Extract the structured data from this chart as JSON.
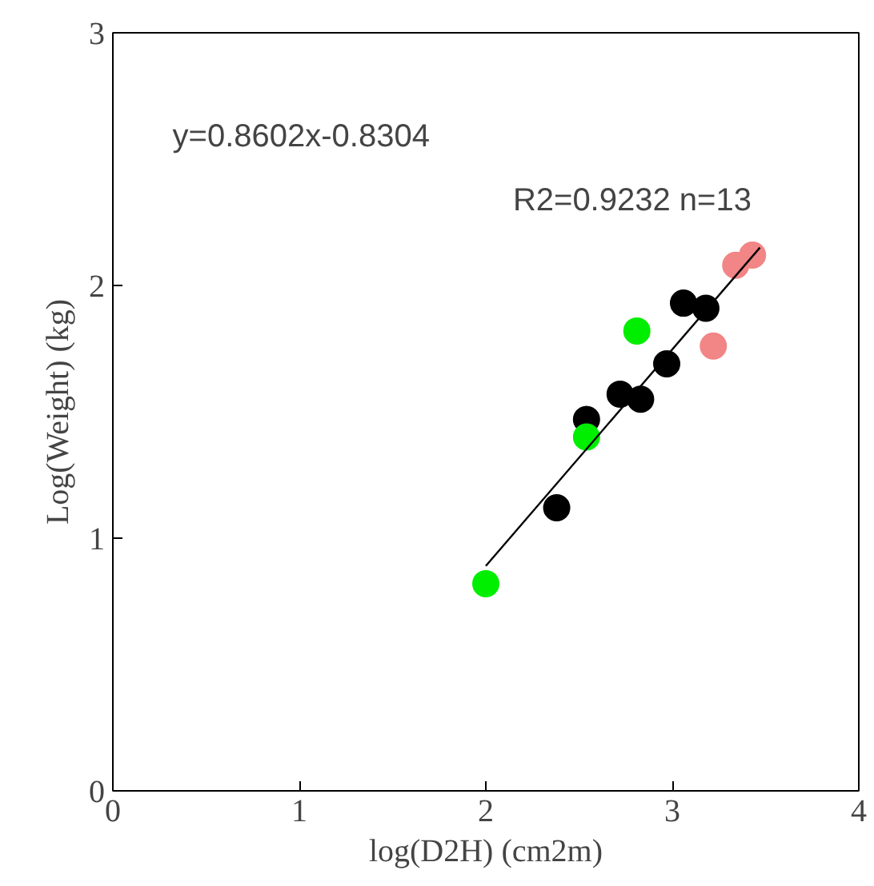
{
  "chart_data": {
    "type": "scatter",
    "xlabel": "log(D2H) (cm2m)",
    "ylabel": "Log(Weight) (kg)",
    "xlim": [
      0,
      4
    ],
    "ylim": [
      0,
      3
    ],
    "xticks": [
      0,
      1,
      2,
      3,
      4
    ],
    "yticks": [
      0,
      1,
      2,
      3
    ],
    "grid": false,
    "marker": "circle",
    "annotations": [
      "y=0.8602x-0.8304",
      "R2=0.9232   n=13"
    ],
    "series": [
      {
        "color": "#000000",
        "x": [
          2.38,
          2.54,
          2.72,
          2.83,
          2.97,
          3.06,
          3.18
        ],
        "values": [
          1.12,
          1.47,
          1.57,
          1.55,
          1.69,
          1.93,
          1.91
        ]
      },
      {
        "color": "#00ee00",
        "x": [
          2.0,
          2.54,
          2.81
        ],
        "values": [
          0.82,
          1.4,
          1.82
        ]
      },
      {
        "color": "#f28585",
        "x": [
          3.22,
          3.34,
          3.43
        ],
        "values": [
          1.76,
          2.08,
          2.12
        ]
      },
      {
        "type": "line",
        "marker": "none",
        "color": "#000000",
        "x": [
          2.0,
          3.47
        ],
        "values": [
          0.89,
          2.15
        ]
      }
    ]
  }
}
